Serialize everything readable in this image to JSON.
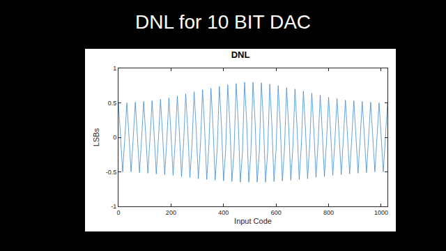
{
  "heading": "DNL for 10 BIT DAC",
  "chart_data": {
    "type": "line",
    "title": "DNL",
    "x_label": "Input Code",
    "y_label": "LSBs",
    "x": [
      0,
      8,
      16,
      24,
      32,
      40,
      48,
      56,
      64,
      72,
      80,
      88,
      96,
      104,
      112,
      120,
      128,
      136,
      144,
      152,
      160,
      168,
      176,
      184,
      192,
      200,
      208,
      216,
      224,
      232,
      240,
      248,
      256,
      264,
      272,
      280,
      288,
      296,
      304,
      312,
      320,
      328,
      336,
      344,
      352,
      360,
      368,
      376,
      384,
      392,
      400,
      408,
      416,
      424,
      432,
      440,
      448,
      456,
      464,
      472,
      480,
      488,
      496,
      504,
      512,
      520,
      528,
      536,
      544,
      552,
      560,
      568,
      576,
      584,
      592,
      600,
      608,
      616,
      624,
      632,
      640,
      648,
      656,
      664,
      672,
      680,
      688,
      696,
      704,
      712,
      720,
      728,
      736,
      744,
      752,
      760,
      768,
      776,
      784,
      792,
      800,
      808,
      816,
      824,
      832,
      840,
      848,
      856,
      864,
      872,
      880,
      888,
      896,
      904,
      912,
      920,
      928,
      936,
      944,
      952,
      960,
      968,
      976,
      984,
      992,
      1000,
      1008,
      1016,
      1024
    ],
    "series": [
      {
        "color": "#3d8ad0",
        "values": [
          0.5,
          0.02,
          -0.5,
          -0.02,
          0.5,
          0.02,
          -0.5,
          -0.02,
          0.51,
          0.02,
          -0.51,
          -0.02,
          0.52,
          0.02,
          -0.52,
          -0.02,
          0.53,
          0.03,
          -0.53,
          -0.03,
          0.55,
          0.03,
          -0.54,
          -0.04,
          0.57,
          0.05,
          -0.55,
          -0.06,
          0.6,
          0.07,
          -0.57,
          -0.08,
          0.63,
          0.09,
          -0.58,
          -0.1,
          0.66,
          0.11,
          -0.6,
          -0.12,
          0.69,
          0.13,
          -0.61,
          -0.14,
          0.71,
          0.15,
          -0.62,
          -0.16,
          0.74,
          0.17,
          -0.63,
          -0.18,
          0.76,
          0.19,
          -0.64,
          -0.2,
          0.78,
          0.21,
          -0.65,
          -0.22,
          0.8,
          0.23,
          -0.65,
          -0.23,
          0.8,
          0.23,
          -0.65,
          -0.22,
          0.79,
          0.21,
          -0.65,
          -0.2,
          0.77,
          0.19,
          -0.64,
          -0.18,
          0.75,
          0.17,
          -0.63,
          -0.16,
          0.72,
          0.15,
          -0.62,
          -0.14,
          0.7,
          0.13,
          -0.61,
          -0.12,
          0.67,
          0.11,
          -0.6,
          -0.1,
          0.64,
          0.09,
          -0.58,
          -0.08,
          0.61,
          0.07,
          -0.57,
          -0.06,
          0.58,
          0.05,
          -0.55,
          -0.04,
          0.56,
          0.03,
          -0.54,
          -0.03,
          0.54,
          0.02,
          -0.53,
          -0.02,
          0.53,
          0.02,
          -0.52,
          -0.02,
          0.52,
          0.02,
          -0.51,
          -0.02,
          0.51,
          0.02,
          -0.5,
          -0.02,
          0.5,
          0.02,
          -0.5,
          -0.02,
          0.5
        ]
      }
    ],
    "xlim": [
      0,
      1024
    ],
    "xticks": [
      0,
      200,
      400,
      600,
      800,
      1000
    ],
    "ylim": [
      -1,
      1
    ],
    "yticks": [
      -1,
      -0.5,
      0,
      0.5,
      1
    ],
    "grid": false
  }
}
